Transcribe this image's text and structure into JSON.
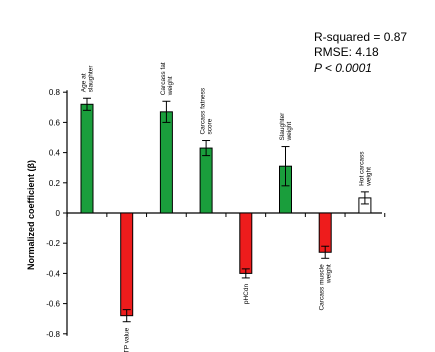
{
  "chart_data": {
    "type": "bar",
    "categories": [
      "Age at slaughter",
      "BTP value",
      "Carcass fat weight",
      "Carcass fatness score",
      "pHCdn",
      "Slaughter weight",
      "Carcass muscle weight",
      "Hot carcass weight"
    ],
    "values": [
      0.72,
      -0.68,
      0.67,
      0.43,
      -0.4,
      0.31,
      -0.26,
      0.1
    ],
    "errors": [
      0.04,
      0.04,
      0.07,
      0.05,
      0.03,
      0.13,
      0.04,
      0.04
    ],
    "bar_colors": [
      "#1a9e3c",
      "#ee1c1c",
      "#1a9e3c",
      "#1a9e3c",
      "#ee1c1c",
      "#1a9e3c",
      "#ee1c1c",
      "#ffffff"
    ],
    "ylabel": "Normalized coefficient (β)",
    "ylim": [
      -0.8,
      0.8
    ],
    "yticks": [
      0.8,
      0.6,
      0.4,
      0.2,
      0,
      -0.2,
      -0.4,
      -0.6,
      -0.8
    ],
    "ytick_labels": [
      "0.8",
      "0.6",
      "0.4",
      "0.2",
      "0",
      "-0.2",
      "-0.4",
      "-0.6",
      "-0.8"
    ],
    "grid": false,
    "legend": "none",
    "annotations": [
      "R-squared = 0.87",
      "RMSE: 4.18",
      "P < 0.0001"
    ]
  }
}
